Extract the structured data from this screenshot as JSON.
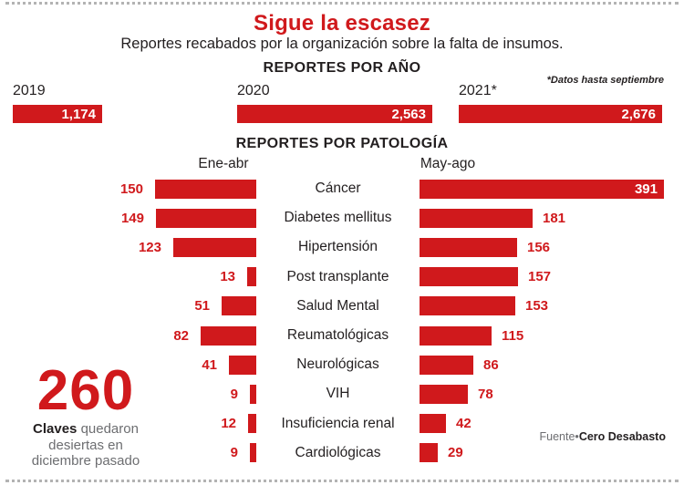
{
  "colors": {
    "accent": "#d0191c",
    "text_dark": "#231f20",
    "text_gray": "#6d6e71",
    "bar_value_on_bar": "#ffffff"
  },
  "header": {
    "title": "Sigue la escasez",
    "subtitle": "Reportes recabados por la organización sobre la falta de insumos."
  },
  "chart_data": [
    {
      "type": "bar",
      "title": "REPORTES POR AÑO",
      "note": "*Datos hasta septiembre",
      "categories": [
        "2019",
        "2020",
        "2021*"
      ],
      "values": [
        1174,
        2563,
        2676
      ],
      "value_labels": [
        "1,174",
        "2,563",
        "2,676"
      ],
      "orientation": "horizontal",
      "grid": false
    },
    {
      "type": "bar",
      "title": "REPORTES POR PATOLOGÍA",
      "categories": [
        "Cáncer",
        "Diabetes mellitus",
        "Hipertensión",
        "Post transplante",
        "Salud Mental",
        "Reumatológicas",
        "Neurológicas",
        "VIH",
        "Insuficiencia renal",
        "Cardiológicas"
      ],
      "series": [
        {
          "name": "Ene-abr",
          "values": [
            150,
            149,
            123,
            13,
            51,
            82,
            41,
            9,
            12,
            9
          ]
        },
        {
          "name": "May-ago",
          "values": [
            391,
            181,
            156,
            157,
            153,
            115,
            86,
            78,
            42,
            29
          ]
        }
      ],
      "orientation": "horizontal-diverging",
      "grid": false,
      "legend_position": "above-columns"
    }
  ],
  "callout": {
    "number": "260",
    "bold": "Claves",
    "rest": "quedaron desiertas en diciembre pasado"
  },
  "source": {
    "prefix": "Fuente•",
    "name": "Cero Desabasto"
  }
}
